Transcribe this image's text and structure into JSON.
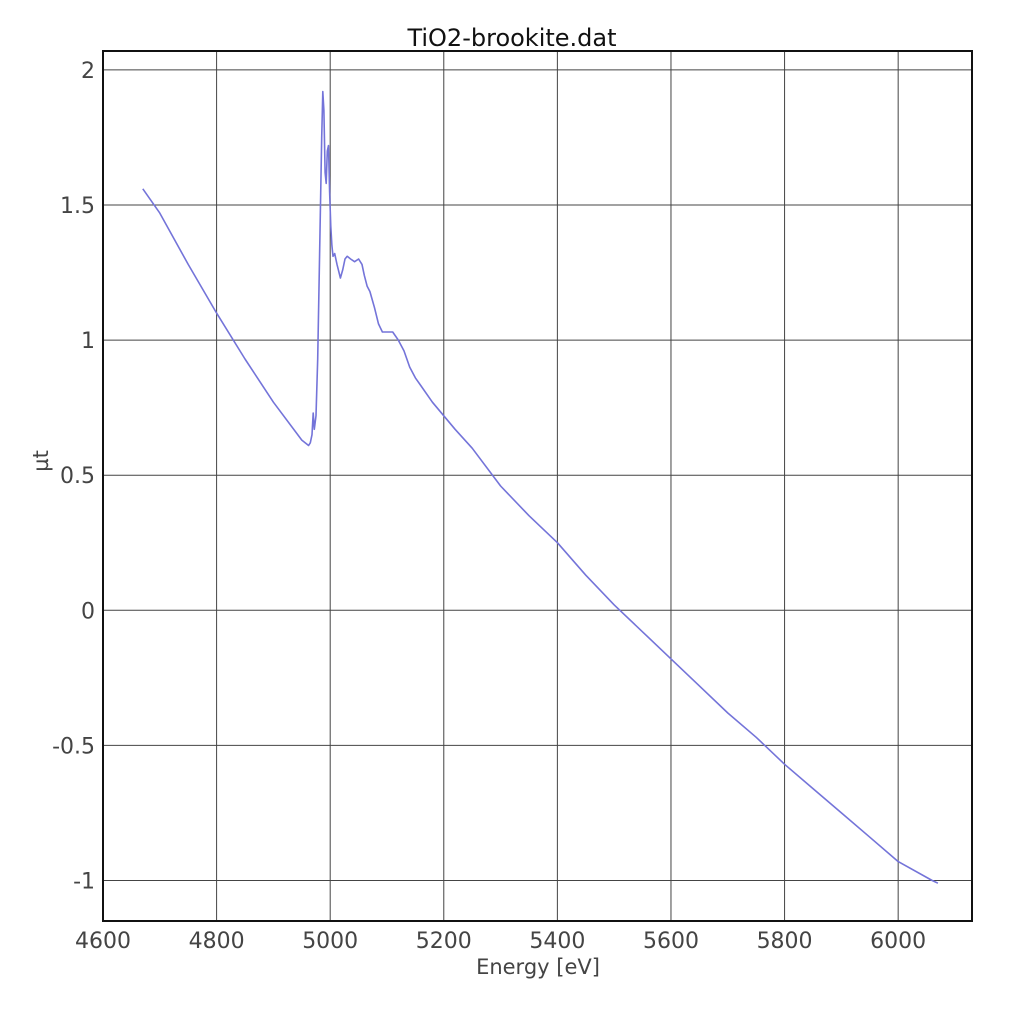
{
  "chart_data": {
    "type": "line",
    "title": "TiO2-brookite.dat",
    "xlabel": "Energy [eV]",
    "ylabel": "µt",
    "xlim": [
      4600,
      6130
    ],
    "ylim": [
      -1.15,
      2.07
    ],
    "xticks": [
      4600,
      4800,
      5000,
      5200,
      5400,
      5600,
      5800,
      6000
    ],
    "yticks": [
      2,
      1.5,
      1,
      0.5,
      0,
      -0.5,
      -1
    ],
    "xtick_labels": [
      "4600",
      "4800",
      "5000",
      "5200",
      "5400",
      "5600",
      "5800",
      "6000"
    ],
    "ytick_labels": [
      "2",
      "1.5",
      "1",
      "0.5",
      "0",
      "-0.5",
      "-1"
    ],
    "grid": true,
    "series": [
      {
        "color": "#7474d9",
        "x": [
          4670,
          4700,
          4750,
          4800,
          4850,
          4900,
          4950,
          4962,
          4965,
          4968,
          4970,
          4972,
          4975,
          4978,
          4982,
          4985,
          4987,
          4989,
          4991,
          4993,
          4995,
          4997,
          4999,
          5001,
          5003,
          5005,
          5008,
          5012,
          5018,
          5022,
          5026,
          5030,
          5036,
          5043,
          5050,
          5056,
          5060,
          5065,
          5070,
          5078,
          5085,
          5092,
          5100,
          5110,
          5120,
          5130,
          5140,
          5150,
          5160,
          5180,
          5200,
          5220,
          5250,
          5300,
          5350,
          5400,
          5450,
          5500,
          5550,
          5600,
          5650,
          5700,
          5750,
          5800,
          5850,
          5900,
          5950,
          6000,
          6060,
          6070
        ],
        "y": [
          1.56,
          1.47,
          1.28,
          1.1,
          0.93,
          0.77,
          0.63,
          0.61,
          0.62,
          0.65,
          0.73,
          0.67,
          0.72,
          0.93,
          1.4,
          1.75,
          1.92,
          1.85,
          1.62,
          1.58,
          1.7,
          1.72,
          1.55,
          1.42,
          1.35,
          1.31,
          1.32,
          1.28,
          1.23,
          1.26,
          1.3,
          1.31,
          1.3,
          1.29,
          1.3,
          1.28,
          1.24,
          1.2,
          1.18,
          1.12,
          1.06,
          1.03,
          1.03,
          1.03,
          1.0,
          0.96,
          0.9,
          0.86,
          0.83,
          0.77,
          0.72,
          0.67,
          0.6,
          0.46,
          0.35,
          0.25,
          0.13,
          0.02,
          -0.08,
          -0.18,
          -0.28,
          -0.38,
          -0.47,
          -0.57,
          -0.66,
          -0.75,
          -0.84,
          -0.93,
          -1.0,
          -1.01
        ]
      }
    ]
  }
}
